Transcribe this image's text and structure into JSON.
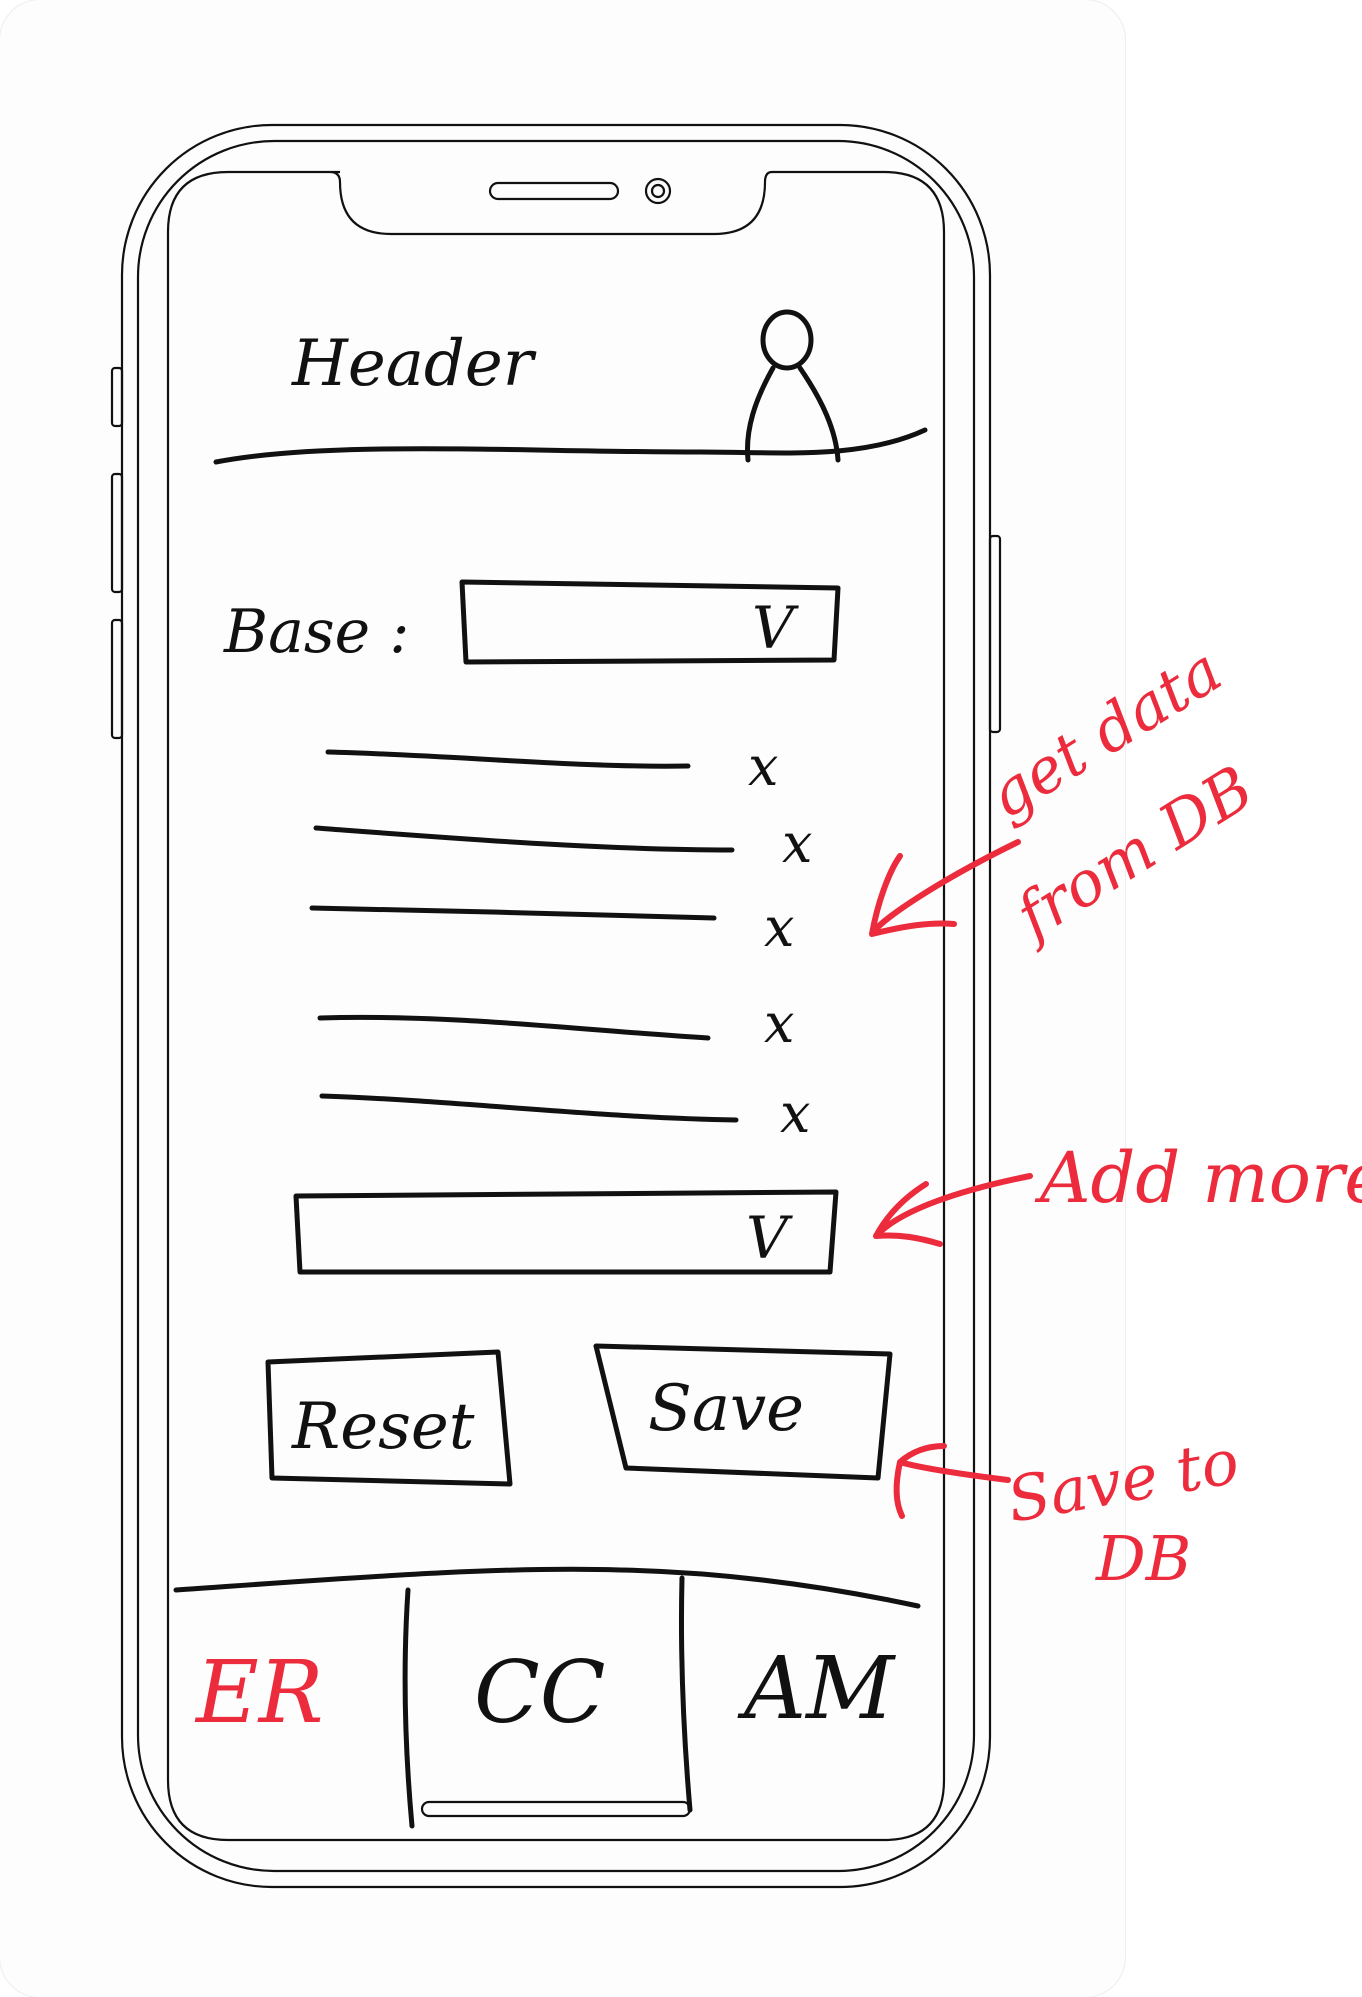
{
  "header": {
    "title": "Header"
  },
  "form": {
    "base_label": "Base :",
    "base_select_mark": "V",
    "list_items": [
      {
        "remove_mark": "x"
      },
      {
        "remove_mark": "x"
      },
      {
        "remove_mark": "x"
      },
      {
        "remove_mark": "x"
      },
      {
        "remove_mark": "x"
      }
    ],
    "add_select_mark": "V",
    "reset_label": "Reset",
    "save_label": "Save"
  },
  "tabs": [
    {
      "label": "ER",
      "active": true
    },
    {
      "label": "CC",
      "active": false
    },
    {
      "label": "AM",
      "active": false
    }
  ],
  "annotations": {
    "get_data": [
      "get data",
      "from DB"
    ],
    "add_more": "Add more",
    "save_to_db": [
      "Save to",
      "DB"
    ]
  },
  "colors": {
    "ink": "#111111",
    "annotation": "#ec2b3c",
    "page": "#ffffff"
  },
  "icons": {
    "avatar": "person-icon",
    "dropdown": "chevron-down-icon",
    "remove": "close-icon"
  }
}
